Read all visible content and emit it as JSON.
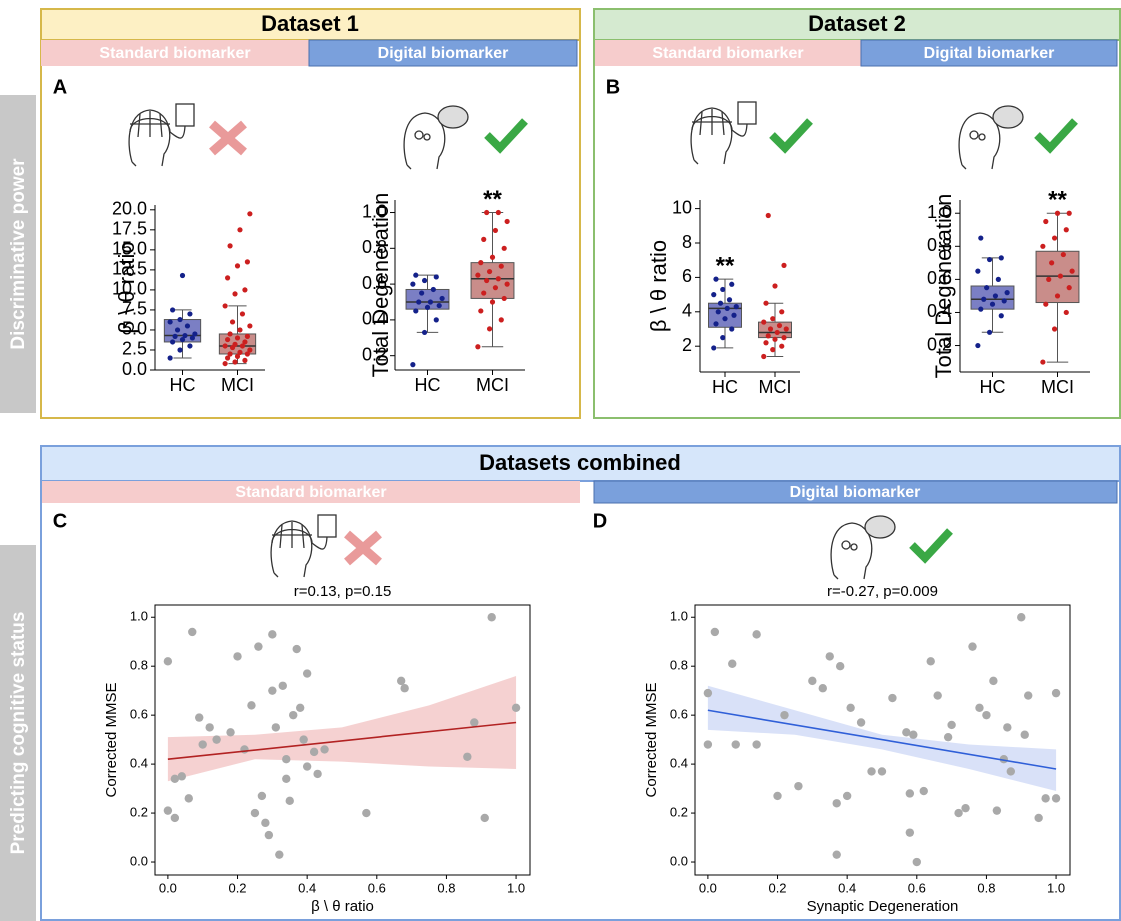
{
  "sections": [
    {
      "title": "Dataset 1",
      "standard": "Standard biomarker",
      "digital": "Digital biomarker"
    },
    {
      "title": "Dataset 2",
      "standard": "Standard biomarker",
      "digital": "Digital biomarker"
    },
    {
      "title": "Datasets combined",
      "standard": "Standard biomarker",
      "digital": "Digital biomarker"
    }
  ],
  "row_labels": [
    "Discriminative power",
    "Predicting cognitive status"
  ],
  "chart_data": [
    {
      "type": "box",
      "panel": "A",
      "ylabel": "β \\ θ ratio",
      "categories": [
        "HC",
        "MCI"
      ],
      "ylim": [
        0,
        20.6
      ],
      "yticks": [
        {
          "value": 0,
          "label": "0.0"
        },
        {
          "value": 2.5,
          "label": "2.5"
        },
        {
          "value": 5,
          "label": "5.0"
        },
        {
          "value": 7.5,
          "label": "7.5"
        },
        {
          "value": 10,
          "label": "10.0"
        },
        {
          "value": 12.5,
          "label": "12.5"
        },
        {
          "value": 15,
          "label": "15.0"
        },
        {
          "value": 17.5,
          "label": "17.5"
        },
        {
          "value": 20,
          "label": "20.0"
        }
      ],
      "box_colors": [
        "#7b7fc4",
        "#c98d8a"
      ],
      "point_colors": [
        "#14218a",
        "#cc1f1f"
      ],
      "boxes": [
        {
          "whislo": 1.5,
          "q1": 3.5,
          "med": 4.3,
          "q3": 6.3,
          "whishi": 7.5,
          "points": [
            1.5,
            2.5,
            3,
            3.5,
            3.8,
            4,
            4.2,
            4.3,
            4.5,
            5,
            5.5,
            6,
            6.3,
            7,
            7.5,
            11.8
          ]
        },
        {
          "whislo": 0.8,
          "q1": 2,
          "med": 3,
          "q3": 4.5,
          "whishi": 8,
          "points": [
            0.8,
            1,
            1.2,
            1.5,
            1.7,
            2,
            2,
            2.2,
            2.5,
            2.8,
            3,
            3,
            3.2,
            3.5,
            3.8,
            4,
            4.2,
            4.5,
            5,
            5.5,
            6,
            7,
            8,
            9.5,
            10,
            11.5,
            13,
            13.5,
            15.5,
            17.5,
            19.5
          ]
        }
      ]
    },
    {
      "type": "box",
      "ylabel": "Total Degeneration",
      "categories": [
        "HC",
        "MCI"
      ],
      "significance": [
        null,
        "**"
      ],
      "ylim": [
        0.12,
        1.07
      ],
      "yticks": [
        0.2,
        0.4,
        0.6,
        0.8,
        {
          "value": 1,
          "label": "1.0"
        }
      ],
      "box_colors": [
        "#7b7fc4",
        "#c98d8a"
      ],
      "point_colors": [
        "#14218a",
        "#cc1f1f"
      ],
      "boxes": [
        {
          "whislo": 0.33,
          "q1": 0.46,
          "med": 0.5,
          "q3": 0.57,
          "whishi": 0.65,
          "points": [
            0.15,
            0.33,
            0.4,
            0.45,
            0.47,
            0.48,
            0.5,
            0.5,
            0.52,
            0.55,
            0.57,
            0.6,
            0.62,
            0.64,
            0.65
          ]
        },
        {
          "whislo": 0.25,
          "q1": 0.52,
          "med": 0.63,
          "q3": 0.72,
          "whishi": 1,
          "points": [
            0.25,
            0.35,
            0.4,
            0.45,
            0.5,
            0.52,
            0.55,
            0.58,
            0.6,
            0.62,
            0.63,
            0.65,
            0.67,
            0.7,
            0.72,
            0.75,
            0.8,
            0.85,
            0.9,
            0.95,
            1,
            1
          ]
        }
      ]
    },
    {
      "type": "box",
      "panel": "B",
      "ylabel": "β \\ θ ratio",
      "categories": [
        "HC",
        "MCI"
      ],
      "significance": [
        "**",
        null
      ],
      "ylim": [
        0.5,
        10.5
      ],
      "yticks": [
        2,
        4,
        6,
        8,
        10
      ],
      "box_colors": [
        "#7b7fc4",
        "#c98d8a"
      ],
      "point_colors": [
        "#14218a",
        "#cc1f1f"
      ],
      "boxes": [
        {
          "whislo": 1.9,
          "q1": 3.1,
          "med": 4.2,
          "q3": 4.5,
          "whishi": 5.9,
          "points": [
            1.9,
            2.5,
            3,
            3.3,
            3.6,
            3.8,
            4,
            4.2,
            4.3,
            4.5,
            4.7,
            5,
            5.3,
            5.6,
            5.9
          ]
        },
        {
          "whislo": 1.4,
          "q1": 2.5,
          "med": 2.8,
          "q3": 3.4,
          "whishi": 4.5,
          "points": [
            1.4,
            1.8,
            2,
            2.2,
            2.4,
            2.5,
            2.6,
            2.8,
            3,
            3,
            3.2,
            3.4,
            3.6,
            4,
            4.5,
            5.5,
            6.7,
            9.6
          ]
        }
      ]
    },
    {
      "type": "box",
      "ylabel": "Total Degeneration",
      "categories": [
        "HC",
        "MCI"
      ],
      "significance": [
        null,
        "**"
      ],
      "ylim": [
        0.04,
        1.08
      ],
      "yticks": [
        0.2,
        0.4,
        0.6,
        0.8,
        {
          "value": 1,
          "label": "1.0"
        }
      ],
      "box_colors": [
        "#7b7fc4",
        "#c98d8a"
      ],
      "point_colors": [
        "#14218a",
        "#cc1f1f"
      ],
      "boxes": [
        {
          "whislo": 0.28,
          "q1": 0.42,
          "med": 0.48,
          "q3": 0.56,
          "whishi": 0.73,
          "points": [
            0.2,
            0.28,
            0.38,
            0.42,
            0.45,
            0.47,
            0.48,
            0.5,
            0.52,
            0.55,
            0.6,
            0.65,
            0.72,
            0.73,
            0.85
          ]
        },
        {
          "whislo": 0.1,
          "q1": 0.46,
          "med": 0.62,
          "q3": 0.77,
          "whishi": 1,
          "points": [
            0.1,
            0.3,
            0.4,
            0.45,
            0.5,
            0.55,
            0.6,
            0.62,
            0.65,
            0.7,
            0.75,
            0.8,
            0.85,
            0.9,
            0.95,
            1,
            1
          ]
        }
      ]
    },
    {
      "type": "scatter",
      "panel": "C",
      "title": "r=0.13, p=0.15",
      "xlabel": "β \\ θ ratio",
      "ylabel": "Corrected MMSE",
      "point_color": "#a9a9a9",
      "fit_color": "#b22222",
      "band_color": "#f2c6c6",
      "xlim": [
        -0.037,
        1.04
      ],
      "ylim": [
        -0.053,
        1.05
      ],
      "xticks": [
        {
          "value": 0,
          "label": "0.0"
        },
        0.2,
        0.4,
        0.6,
        0.8,
        {
          "value": 1,
          "label": "1.0"
        }
      ],
      "yticks": [
        {
          "value": 0,
          "label": "0.0"
        },
        0.2,
        0.4,
        0.6,
        0.8,
        {
          "value": 1,
          "label": "1.0"
        }
      ],
      "x": [
        0,
        0,
        0.02,
        0.02,
        0.04,
        0.06,
        0.07,
        0.09,
        0.1,
        0.12,
        0.14,
        0.18,
        0.2,
        0.22,
        0.24,
        0.25,
        0.26,
        0.27,
        0.28,
        0.29,
        0.3,
        0.3,
        0.31,
        0.32,
        0.33,
        0.34,
        0.34,
        0.35,
        0.36,
        0.37,
        0.38,
        0.39,
        0.4,
        0.4,
        0.42,
        0.43,
        0.45,
        0.57,
        0.67,
        0.68,
        0.86,
        0.88,
        0.91,
        0.93,
        1
      ],
      "y": [
        0.82,
        0.21,
        0.18,
        0.34,
        0.35,
        0.26,
        0.94,
        0.59,
        0.48,
        0.55,
        0.5,
        0.53,
        0.84,
        0.46,
        0.64,
        0.2,
        0.88,
        0.27,
        0.16,
        0.11,
        0.7,
        0.93,
        0.55,
        0.03,
        0.72,
        0.34,
        0.42,
        0.25,
        0.6,
        0.87,
        0.63,
        0.5,
        0.39,
        0.77,
        0.45,
        0.36,
        0.46,
        0.2,
        0.74,
        0.71,
        0.43,
        0.57,
        0.18,
        1,
        0.63
      ],
      "fit_x": [
        0,
        1
      ],
      "fit_y": [
        0.42,
        0.57
      ],
      "band_x": [
        0,
        0.25,
        0.5,
        0.75,
        1
      ],
      "band_lower": [
        0.33,
        0.42,
        0.41,
        0.39,
        0.38
      ],
      "band_upper": [
        0.51,
        0.52,
        0.55,
        0.64,
        0.76
      ]
    },
    {
      "type": "scatter",
      "panel": "D",
      "title": "r=-0.27, p=0.009",
      "xlabel": "Synaptic Degeneration",
      "ylabel": "Corrected MMSE",
      "point_color": "#a9a9a9",
      "fit_color": "#2f5fd8",
      "band_color": "#cfd9f6",
      "xlim": [
        -0.037,
        1.04
      ],
      "ylim": [
        -0.053,
        1.05
      ],
      "xticks": [
        {
          "value": 0,
          "label": "0.0"
        },
        0.2,
        0.4,
        0.6,
        0.8,
        {
          "value": 1,
          "label": "1.0"
        }
      ],
      "yticks": [
        {
          "value": 0,
          "label": "0.0"
        },
        0.2,
        0.4,
        0.6,
        0.8,
        {
          "value": 1,
          "label": "1.0"
        }
      ],
      "x": [
        0,
        0,
        0.02,
        0.07,
        0.08,
        0.14,
        0.14,
        0.2,
        0.22,
        0.26,
        0.3,
        0.33,
        0.35,
        0.37,
        0.37,
        0.38,
        0.4,
        0.41,
        0.44,
        0.47,
        0.5,
        0.53,
        0.57,
        0.58,
        0.58,
        0.59,
        0.6,
        0.62,
        0.64,
        0.66,
        0.69,
        0.7,
        0.72,
        0.74,
        0.76,
        0.78,
        0.8,
        0.82,
        0.83,
        0.85,
        0.86,
        0.87,
        0.9,
        0.91,
        0.92,
        0.95,
        0.97,
        1,
        1
      ],
      "y": [
        0.69,
        0.48,
        0.94,
        0.81,
        0.48,
        0.93,
        0.48,
        0.27,
        0.6,
        0.31,
        0.74,
        0.71,
        0.84,
        0.24,
        0.03,
        0.8,
        0.27,
        0.63,
        0.57,
        0.37,
        0.37,
        0.67,
        0.53,
        0.28,
        0.12,
        0.52,
        0,
        0.29,
        0.82,
        0.68,
        0.51,
        0.56,
        0.2,
        0.22,
        0.88,
        0.63,
        0.6,
        0.74,
        0.21,
        0.42,
        0.55,
        0.37,
        1,
        0.52,
        0.68,
        0.18,
        0.26,
        0.69,
        0.26
      ],
      "fit_x": [
        0,
        1
      ],
      "fit_y": [
        0.62,
        0.38
      ],
      "band_x": [
        0,
        0.25,
        0.5,
        0.75,
        1
      ],
      "band_lower": [
        0.54,
        0.52,
        0.46,
        0.38,
        0.29
      ],
      "band_upper": [
        0.72,
        0.62,
        0.52,
        0.48,
        0.46
      ]
    }
  ]
}
